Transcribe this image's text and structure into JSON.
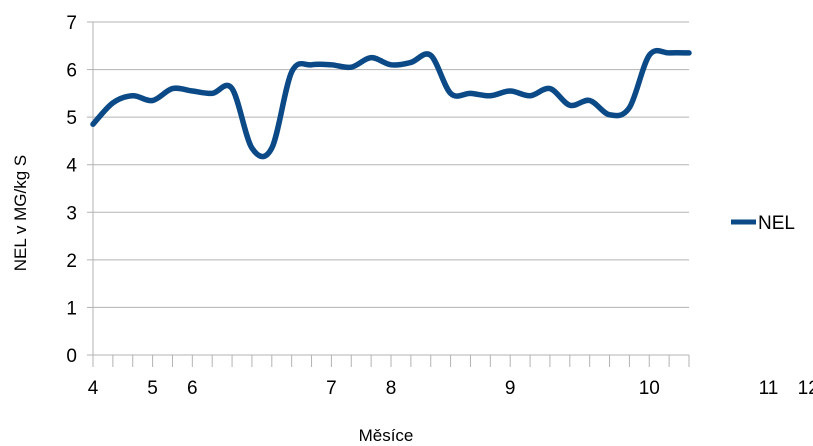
{
  "chart_data": {
    "type": "line",
    "title": "",
    "xlabel": "Měsíce",
    "ylabel": "NEL v MG/kg S",
    "ylim": [
      0,
      7
    ],
    "yticks": [
      "0",
      "1",
      "2",
      "3",
      "4",
      "5",
      "6",
      "7"
    ],
    "grid": "horizontal",
    "legend_position": "right",
    "xtick_labels": [
      {
        "label": "4",
        "index": 0
      },
      {
        "label": "5",
        "index": 3
      },
      {
        "label": "6",
        "index": 5
      },
      {
        "label": "7",
        "index": 12
      },
      {
        "label": "8",
        "index": 15
      },
      {
        "label": "9",
        "index": 21
      },
      {
        "label": "10",
        "index": 28
      },
      {
        "label": "11",
        "index": 34
      },
      {
        "label": "12",
        "index": 36
      }
    ],
    "series": [
      {
        "name": "NEL",
        "color": "#0b4a86",
        "values": [
          4.85,
          5.3,
          5.45,
          5.35,
          5.6,
          5.55,
          5.5,
          5.6,
          4.35,
          4.35,
          5.95,
          6.1,
          6.1,
          6.05,
          6.25,
          6.1,
          6.15,
          6.3,
          5.5,
          5.5,
          5.45,
          5.55,
          5.45,
          5.6,
          5.25,
          5.35,
          5.05,
          5.2,
          6.3,
          6.35,
          6.35
        ]
      }
    ]
  }
}
